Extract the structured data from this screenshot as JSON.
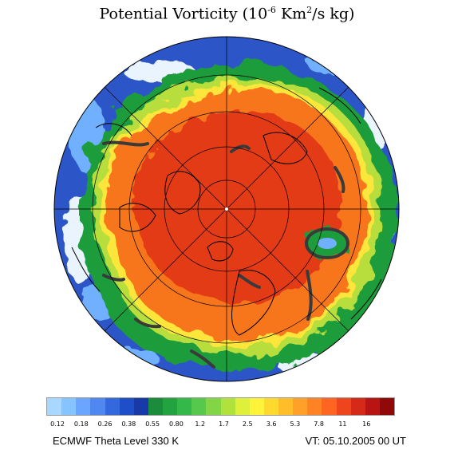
{
  "title": {
    "prefix": "Potential Vorticity (10",
    "exp1": "-6",
    "mid": " Km",
    "exp2": "2",
    "suffix": "/s kg)"
  },
  "footer": {
    "left": "ECMWF Theta Level 330 K",
    "right": "VT: 05.10.2005 00 UT"
  },
  "colorbar": {
    "colors": [
      "#a8d8ff",
      "#86c4ff",
      "#6aa6ff",
      "#4f88f0",
      "#3468dd",
      "#1e4ec8",
      "#173aa8",
      "#1b8c3c",
      "#22a33f",
      "#34b84a",
      "#56c84c",
      "#82d645",
      "#b0e23e",
      "#dff03a",
      "#fff23a",
      "#ffd92e",
      "#ffbd2a",
      "#ffa028",
      "#ff8224",
      "#ff6420",
      "#ef451c",
      "#d52a18",
      "#b81414",
      "#900808"
    ],
    "tick_labels": [
      "0.12",
      "0.18",
      "0.26",
      "0.38",
      "0.55",
      "0.80",
      "1.2",
      "1.7",
      "2.5",
      "3.6",
      "5.3",
      "7.8",
      "11",
      "16"
    ]
  },
  "map": {
    "projection": "polar-stereographic-north",
    "field": "potential-vorticity",
    "colors": {
      "outer_blue": "#2c55c8",
      "white_patch": "#eaf4ff",
      "light_blue": "#6fb0ff",
      "green": "#1f9c3a",
      "yellow_green": "#b7de3c",
      "yellow": "#fde63a",
      "orange": "#f7761e",
      "red": "#e33a14",
      "dark_contour": "#3a3a3a",
      "coastline": "#000000"
    }
  }
}
